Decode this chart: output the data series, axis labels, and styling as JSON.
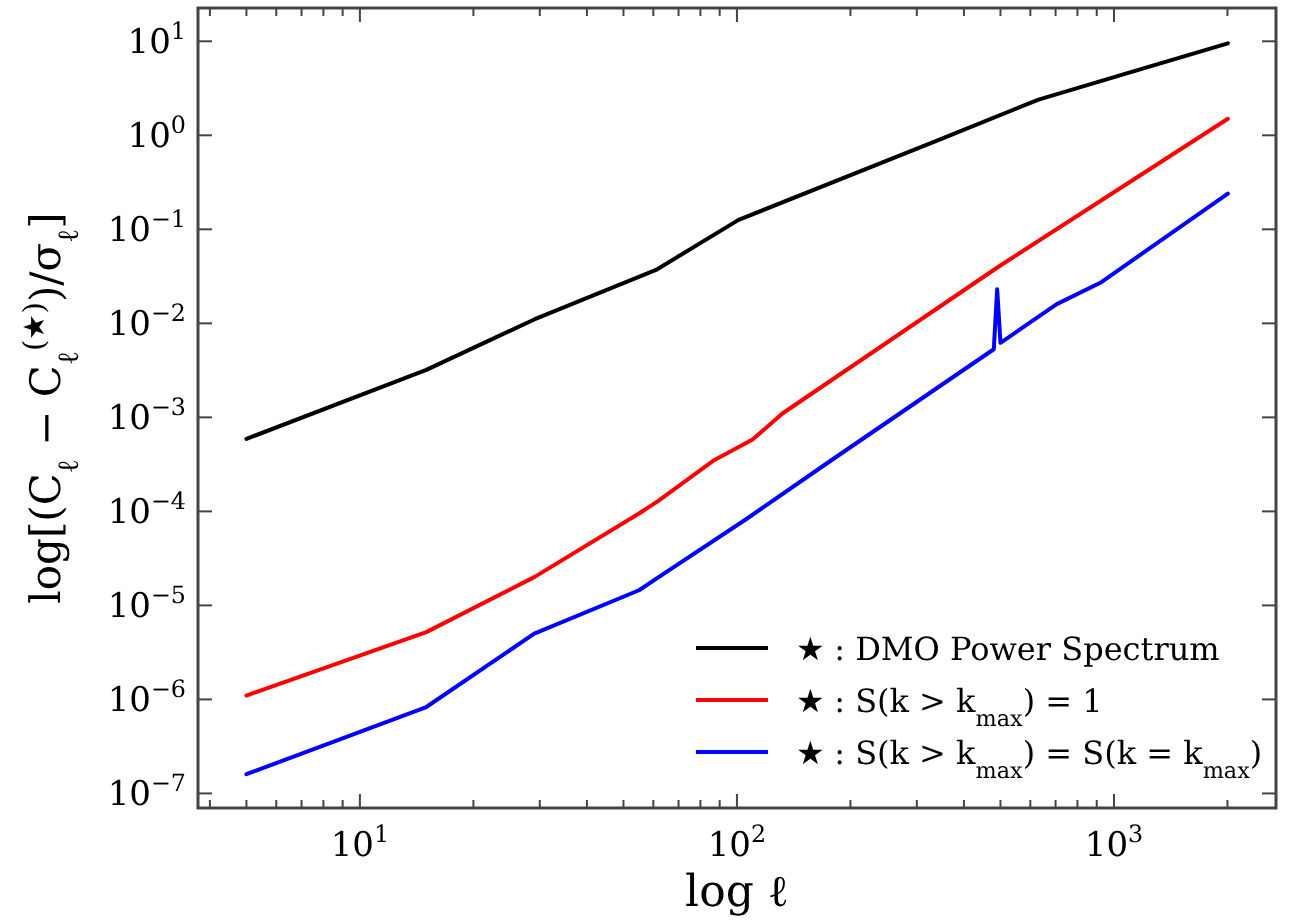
{
  "chart_data": {
    "type": "line",
    "xlabel": "log ℓ",
    "ylabel": "log[(C$_{ℓ}$ − C$_{ℓ}$$^{(★)}$)/σ$_{ℓ}$]",
    "log": "xy",
    "xlim": [
      3.72,
      2690
    ],
    "ylim": [
      7e-08,
      22.6
    ],
    "xticks": [
      {
        "value": 4,
        "label": null
      },
      {
        "value": 5,
        "label": null
      },
      {
        "value": 6,
        "label": null
      },
      {
        "value": 7,
        "label": null
      },
      {
        "value": 8,
        "label": null
      },
      {
        "value": 9,
        "label": null
      },
      {
        "value": 10,
        "label": "10$^{1}$"
      },
      {
        "value": 20,
        "label": null
      },
      {
        "value": 30,
        "label": null
      },
      {
        "value": 40,
        "label": null
      },
      {
        "value": 50,
        "label": null
      },
      {
        "value": 60,
        "label": null
      },
      {
        "value": 70,
        "label": null
      },
      {
        "value": 80,
        "label": null
      },
      {
        "value": 90,
        "label": null
      },
      {
        "value": 100,
        "label": "10$^{2}$"
      },
      {
        "value": 200,
        "label": null
      },
      {
        "value": 300,
        "label": null
      },
      {
        "value": 400,
        "label": null
      },
      {
        "value": 500,
        "label": null
      },
      {
        "value": 600,
        "label": null
      },
      {
        "value": 700,
        "label": null
      },
      {
        "value": 800,
        "label": null
      },
      {
        "value": 900,
        "label": null
      },
      {
        "value": 1000,
        "label": "10$^{3}$"
      },
      {
        "value": 2000,
        "label": null
      }
    ],
    "yticks": [
      {
        "value": 1e-07,
        "label": "10$^{−7}$"
      },
      {
        "value": 1e-06,
        "label": "10$^{−6}$"
      },
      {
        "value": 1e-05,
        "label": "10$^{−5}$"
      },
      {
        "value": 0.0001,
        "label": "10$^{−4}$"
      },
      {
        "value": 0.001,
        "label": "10$^{−3}$"
      },
      {
        "value": 0.01,
        "label": "10$^{−2}$"
      },
      {
        "value": 0.1,
        "label": "10$^{−1}$"
      },
      {
        "value": 1,
        "label": "10$^{0}$"
      },
      {
        "value": 10,
        "label": "10$^{1}$"
      }
    ],
    "legend": "bottom right",
    "grid": false,
    "marker": "none",
    "line_style": "solid",
    "series": [
      {
        "name": "★ : DMO Power Spectrum",
        "color": "#000000",
        "x": [
          5,
          15,
          29,
          61,
          101,
          342,
          631,
          1167,
          2005
        ],
        "values": [
          0.00059,
          0.0032,
          0.011,
          0.037,
          0.126,
          0.89,
          2.4,
          5.0,
          9.5
        ]
      },
      {
        "name": "★ : S(k > k$_{max}$) = 1",
        "color": "#ff0000",
        "x": [
          5,
          15,
          29,
          55,
          62,
          87,
          110,
          132,
          494,
          2005
        ],
        "values": [
          1.1e-06,
          5.2e-06,
          2e-05,
          9.5e-05,
          0.00013,
          0.00035,
          0.00058,
          0.0011,
          0.04,
          1.5
        ]
      },
      {
        "name": "★ : S(k > k$_{max}$) = S(k = k$_{max}$)",
        "color": "#0000ff",
        "x": [
          5,
          15,
          29,
          55,
          62,
          105,
          178,
          480,
          490,
          500,
          705,
          920,
          2005
        ],
        "values": [
          1.6e-07,
          8.3e-07,
          5e-06,
          1.45e-05,
          2e-05,
          8.1e-05,
          0.00035,
          0.0053,
          0.023,
          0.0062,
          0.016,
          0.027,
          0.24
        ]
      }
    ]
  }
}
